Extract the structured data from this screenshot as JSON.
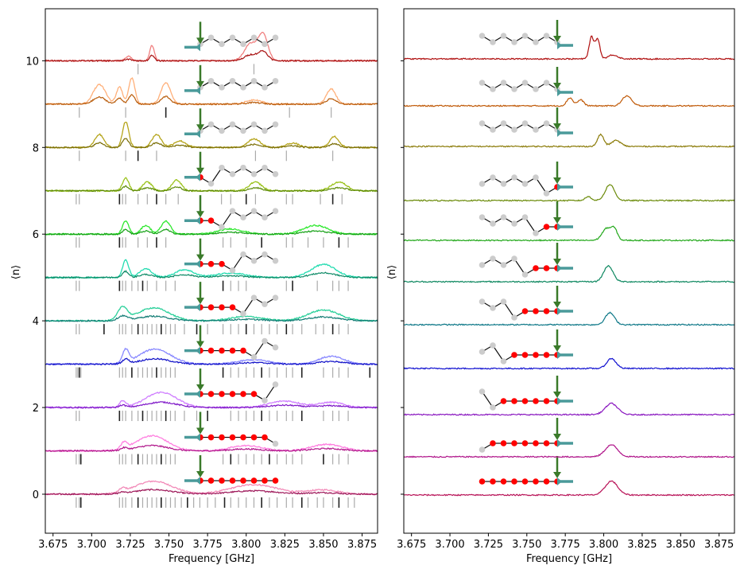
{
  "chart_data": [
    {
      "type": "line",
      "panel": "left",
      "xlabel": "Frequency [GHz]",
      "ylabel": "⟨n⟩",
      "xlim": [
        3.67,
        3.885
      ],
      "ylim": [
        -0.9,
        11.2
      ],
      "x_ticks": [
        "3.675",
        "3.700",
        "3.725",
        "3.750",
        "3.775",
        "3.800",
        "3.825",
        "3.850",
        "3.875"
      ],
      "y_ticks": [
        "0",
        "2",
        "4",
        "6",
        "8",
        "10"
      ],
      "y_tick_values": [
        0,
        2,
        4,
        6,
        8,
        10
      ],
      "series": [
        {
          "offset": 0,
          "red_atoms": 8,
          "color_light": "#f28ab8",
          "color_dark": "#9c1457",
          "peaks": [
            [
              3.72,
              0.08,
              0.002
            ],
            [
              3.74,
              0.3,
              0.012
            ],
            [
              3.805,
              0.22,
              0.015
            ],
            [
              3.85,
              0.1,
              0.01
            ]
          ],
          "ticks": [
            3.69,
            3.692,
            3.693,
            3.718,
            3.72,
            3.722,
            3.726,
            3.73,
            3.733,
            3.736,
            3.739,
            3.742,
            3.745,
            3.748,
            3.751,
            3.754,
            3.758,
            3.762,
            3.766,
            3.77,
            3.775,
            3.78,
            3.786,
            3.79,
            3.795,
            3.8,
            3.805,
            3.81,
            3.815,
            3.82,
            3.826,
            3.83,
            3.836,
            3.84,
            3.846,
            3.85,
            3.856,
            3.86,
            3.866,
            3.87
          ]
        },
        {
          "offset": 1,
          "red_atoms": 7,
          "color_light": "#ff7ee0",
          "color_dark": "#b0158a",
          "peaks": [
            [
              3.721,
              0.15,
              0.002
            ],
            [
              3.739,
              0.35,
              0.01
            ],
            [
              3.8,
              0.12,
              0.01
            ],
            [
              3.852,
              0.15,
              0.01
            ]
          ],
          "ticks": [
            3.69,
            3.692,
            3.693,
            3.718,
            3.72,
            3.722,
            3.726,
            3.73,
            3.733,
            3.736,
            3.739,
            3.742,
            3.745,
            3.748,
            3.751,
            3.754,
            3.785,
            3.79,
            3.795,
            3.8,
            3.805,
            3.81,
            3.815,
            3.82,
            3.826,
            3.83,
            3.836,
            3.85,
            3.856,
            3.86,
            3.866
          ]
        },
        {
          "offset": 2,
          "red_atoms": 6,
          "color_light": "#cf7dff",
          "color_dark": "#7f18c8",
          "peaks": [
            [
              3.72,
              0.15,
              0.002
            ],
            [
              3.745,
              0.35,
              0.01
            ],
            [
              3.825,
              0.15,
              0.01
            ],
            [
              3.855,
              0.12,
              0.008
            ]
          ],
          "ticks": [
            3.69,
            3.692,
            3.718,
            3.72,
            3.722,
            3.726,
            3.73,
            3.733,
            3.736,
            3.739,
            3.742,
            3.745,
            3.748,
            3.751,
            3.754,
            3.76,
            3.768,
            3.775,
            3.79,
            3.795,
            3.8,
            3.805,
            3.81,
            3.815,
            3.82,
            3.826,
            3.83,
            3.836,
            3.85,
            3.856,
            3.86,
            3.866
          ]
        },
        {
          "offset": 3,
          "red_atoms": 5,
          "color_light": "#8888ff",
          "color_dark": "#1010c8",
          "peaks": [
            [
              3.722,
              0.3,
              0.002
            ],
            [
              3.741,
              0.35,
              0.01
            ],
            [
              3.805,
              0.1,
              0.01
            ],
            [
              3.855,
              0.18,
              0.008
            ]
          ],
          "ticks": [
            3.69,
            3.691,
            3.692,
            3.693,
            3.718,
            3.72,
            3.722,
            3.726,
            3.73,
            3.733,
            3.736,
            3.739,
            3.742,
            3.745,
            3.748,
            3.751,
            3.754,
            3.785,
            3.79,
            3.795,
            3.8,
            3.805,
            3.81,
            3.815,
            3.82,
            3.826,
            3.83,
            3.836,
            3.85,
            3.856,
            3.86,
            3.866,
            3.88
          ]
        },
        {
          "offset": 4,
          "red_atoms": 4,
          "color_light": "#2ad09a",
          "color_dark": "#0e7a72",
          "peaks": [
            [
              3.72,
              0.3,
              0.003
            ],
            [
              3.74,
              0.3,
              0.01
            ],
            [
              3.8,
              0.1,
              0.01
            ],
            [
              3.85,
              0.25,
              0.01
            ]
          ],
          "ticks": [
            3.69,
            3.692,
            3.708,
            3.718,
            3.72,
            3.722,
            3.726,
            3.73,
            3.733,
            3.736,
            3.739,
            3.742,
            3.745,
            3.748,
            3.751,
            3.754,
            3.76,
            3.768,
            3.775,
            3.785,
            3.79,
            3.795,
            3.8,
            3.805,
            3.81,
            3.815,
            3.82,
            3.826,
            3.83,
            3.836,
            3.845,
            3.85,
            3.856,
            3.86,
            3.866
          ]
        },
        {
          "offset": 5,
          "red_atoms": 3,
          "color_light": "#22dcb0",
          "color_dark": "#0d8a66",
          "peaks": [
            [
              3.722,
              0.4,
              0.002
            ],
            [
              3.735,
              0.2,
              0.004
            ],
            [
              3.76,
              0.18,
              0.006
            ],
            [
              3.79,
              0.1,
              0.01
            ],
            [
              3.85,
              0.3,
              0.008
            ]
          ],
          "ticks": [
            3.69,
            3.692,
            3.718,
            3.72,
            3.722,
            3.726,
            3.73,
            3.733,
            3.736,
            3.742,
            3.748,
            3.754,
            3.785,
            3.79,
            3.795,
            3.8,
            3.826,
            3.83,
            3.846,
            3.856,
            3.86,
            3.866
          ]
        },
        {
          "offset": 6,
          "red_atoms": 2,
          "color_light": "#2ee82e",
          "color_dark": "#14a014",
          "peaks": [
            [
              3.722,
              0.3,
              0.002
            ],
            [
              3.735,
              0.2,
              0.003
            ],
            [
              3.748,
              0.3,
              0.003
            ],
            [
              3.79,
              0.12,
              0.008
            ],
            [
              3.845,
              0.2,
              0.008
            ]
          ],
          "ticks": [
            3.69,
            3.692,
            3.718,
            3.72,
            3.722,
            3.73,
            3.736,
            3.742,
            3.748,
            3.785,
            3.79,
            3.8,
            3.81,
            3.826,
            3.83,
            3.84,
            3.85,
            3.86,
            3.866
          ]
        },
        {
          "offset": 7,
          "red_atoms": 1,
          "color_light": "#9ac21a",
          "color_dark": "#5d8a06",
          "peaks": [
            [
              3.722,
              0.3,
              0.002
            ],
            [
              3.736,
              0.2,
              0.003
            ],
            [
              3.755,
              0.25,
              0.003
            ],
            [
              3.806,
              0.2,
              0.004
            ],
            [
              3.86,
              0.2,
              0.005
            ]
          ],
          "ticks": [
            3.69,
            3.692,
            3.718,
            3.72,
            3.722,
            3.73,
            3.736,
            3.742,
            3.748,
            3.756,
            3.784,
            3.79,
            3.8,
            3.806,
            3.826,
            3.83,
            3.848,
            3.856,
            3.862
          ]
        },
        {
          "offset": 8,
          "red_atoms": 0,
          "color_light": "#b5a41a",
          "color_dark": "#7a6e05",
          "peaks": [
            [
              3.705,
              0.3,
              0.003
            ],
            [
              3.722,
              0.6,
              0.002
            ],
            [
              3.742,
              0.3,
              0.003
            ],
            [
              3.757,
              0.15,
              0.004
            ],
            [
              3.805,
              0.2,
              0.004
            ],
            [
              3.83,
              0.1,
              0.004
            ],
            [
              3.857,
              0.25,
              0.003
            ]
          ],
          "ticks": [
            3.692,
            3.722,
            3.73,
            3.742,
            3.806,
            3.826,
            3.856
          ]
        },
        {
          "offset": 9,
          "red_atoms": 0,
          "color_light": "#ffb07a",
          "color_dark": "#b85a08",
          "peaks": [
            [
              3.705,
              0.45,
              0.004
            ],
            [
              3.718,
              0.4,
              0.002
            ],
            [
              3.726,
              0.6,
              0.002
            ],
            [
              3.748,
              0.5,
              0.003
            ],
            [
              3.805,
              0.1,
              0.005
            ],
            [
              3.855,
              0.35,
              0.003
            ]
          ],
          "ticks": [
            3.692,
            3.722,
            3.748,
            3.828,
            3.855
          ]
        },
        {
          "offset": 10,
          "red_atoms": 0,
          "color_light": "#f08080",
          "color_dark": "#a81010",
          "peaks": [
            [
              3.724,
              0.1,
              0.002
            ],
            [
              3.739,
              0.35,
              0.0015
            ],
            [
              3.803,
              0.4,
              0.004
            ],
            [
              3.811,
              0.6,
              0.003
            ]
          ],
          "ticks": [
            3.73,
            3.805
          ]
        }
      ]
    },
    {
      "type": "line",
      "panel": "right",
      "xlabel": "Frequency [GHz]",
      "ylabel": "⟨n⟩",
      "xlim": [
        3.67,
        3.885
      ],
      "x_ticks": [
        "3.675",
        "3.700",
        "3.725",
        "3.750",
        "3.775",
        "3.800",
        "3.825",
        "3.850",
        "3.875"
      ],
      "series": [
        {
          "red_atoms": 8,
          "color": "#b81257",
          "peaks": [
            [
              3.805,
              0.35,
              0.004
            ]
          ]
        },
        {
          "red_atoms": 7,
          "color": "#b0158a",
          "peaks": [
            [
              3.805,
              0.3,
              0.004
            ]
          ]
        },
        {
          "red_atoms": 6,
          "color": "#8a18c0",
          "peaks": [
            [
              3.805,
              0.28,
              0.004
            ]
          ]
        },
        {
          "red_atoms": 5,
          "color": "#1010d0",
          "peaks": [
            [
              3.805,
              0.25,
              0.003
            ]
          ]
        },
        {
          "red_atoms": 4,
          "color": "#0e7888",
          "peaks": [
            [
              3.804,
              0.3,
              0.003
            ]
          ]
        },
        {
          "red_atoms": 3,
          "color": "#0e8860",
          "peaks": [
            [
              3.803,
              0.4,
              0.003
            ]
          ]
        },
        {
          "red_atoms": 2,
          "color": "#22a81a",
          "peaks": [
            [
              3.802,
              0.3,
              0.003
            ],
            [
              3.807,
              0.25,
              0.002
            ]
          ]
        },
        {
          "red_atoms": 1,
          "color": "#6a8a08",
          "peaks": [
            [
              3.79,
              0.1,
              0.002
            ],
            [
              3.804,
              0.4,
              0.003
            ]
          ]
        },
        {
          "red_atoms": 0,
          "color": "#8a7a06",
          "peaks": [
            [
              3.798,
              0.3,
              0.002
            ],
            [
              3.808,
              0.15,
              0.003
            ]
          ]
        },
        {
          "red_atoms": 0,
          "color": "#c05a08",
          "peaks": [
            [
              3.778,
              0.2,
              0.002
            ],
            [
              3.785,
              0.15,
              0.002
            ],
            [
              3.815,
              0.25,
              0.003
            ]
          ]
        },
        {
          "red_atoms": 0,
          "color": "#b01010",
          "peaks": [
            [
              3.792,
              0.55,
              0.0015
            ],
            [
              3.796,
              0.5,
              0.0015
            ],
            [
              3.806,
              0.1,
              0.003
            ]
          ]
        }
      ]
    }
  ]
}
